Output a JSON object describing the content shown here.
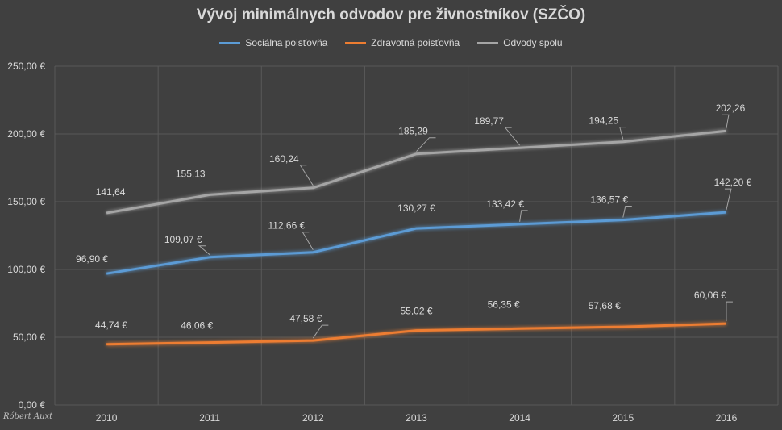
{
  "chart_data": {
    "type": "line",
    "title": "Vývoj minimálnych odvodov pre živnostníkov (SZČO)",
    "categories": [
      "2010",
      "2011",
      "2012",
      "2013",
      "2014",
      "2015",
      "2016"
    ],
    "ylim": [
      0,
      250
    ],
    "yticks": [
      "0,00 €",
      "50,00 €",
      "100,00 €",
      "150,00 €",
      "200,00 €",
      "250,00 €"
    ],
    "ytick_values": [
      0,
      50,
      100,
      150,
      200,
      250
    ],
    "legend_position": "top-center",
    "grid": true,
    "series": [
      {
        "name": "Sociálna poisťovňa",
        "color": "#5b9bd5",
        "values": [
          96.9,
          109.07,
          112.66,
          130.27,
          133.42,
          136.57,
          142.2
        ],
        "labels": [
          "96,90 €",
          "109,07 €",
          "112,66 €",
          "130,27 €",
          "133,42 €",
          "136,57 €",
          "142,20 €"
        ]
      },
      {
        "name": "Zdravotná poisťovňa",
        "color": "#ed7d31",
        "values": [
          44.74,
          46.06,
          47.58,
          55.02,
          56.35,
          57.68,
          60.06
        ],
        "labels": [
          "44,74 €",
          "46,06 €",
          "47,58 €",
          "55,02 €",
          "56,35 €",
          "57,68 €",
          "60,06 €"
        ]
      },
      {
        "name": "Odvody spolu",
        "color": "#a5a5a5",
        "values": [
          141.64,
          155.13,
          160.24,
          185.29,
          189.77,
          194.25,
          202.26
        ],
        "labels": [
          "141,64",
          "155,13",
          "160,24",
          "185,29",
          "189,77",
          "194,25",
          "202,26"
        ]
      }
    ]
  },
  "signature": "Róbert Auxt"
}
